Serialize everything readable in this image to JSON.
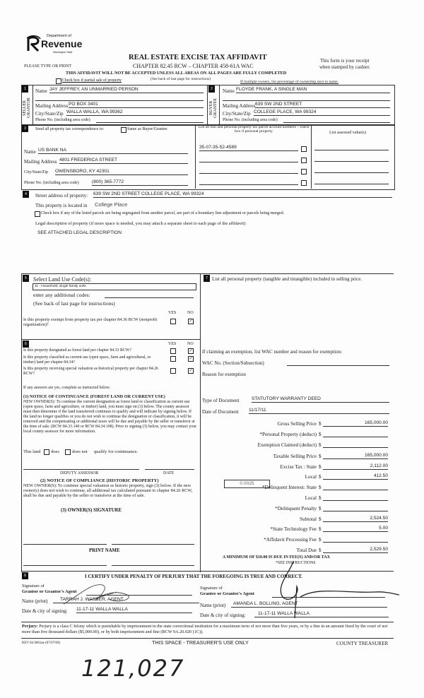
{
  "header": {
    "logo_dept": "Department of",
    "logo_name": "Revenue",
    "logo_state": "Washington State",
    "please_type": "PLEASE TYPE OR PRINT",
    "title": "REAL ESTATE EXCISE TAX AFFIDAVIT",
    "chapter": "CHAPTER 82.45 RCW – CHAPTER 458-61A WAC",
    "warning": "THIS AFFIDAVIT WILL NOT BE ACCEPTED UNLESS ALL AREAS ON ALL PAGES ARE FULLY COMPLETED",
    "see_back": "(See back of last page for instructions)",
    "receipt_line1": "This form is your receipt",
    "receipt_line2": "when stamped by cashier.",
    "partial_sale": "Check box if partial sale of property",
    "multiple_owners": "If multiple owners, list percentage of ownership next to name."
  },
  "seller": {
    "num": "1",
    "side_label": "SELLER GRANTOR",
    "name_label": "Name",
    "name": "JAY JEFFREY, AN UNMARRIED PERSON",
    "mail_label": "Mailing Address",
    "mail": "PO BOX 3401",
    "city_label": "City/State/Zip",
    "city": "WALLA WALLA, WA 99362",
    "phone_label": "Phone No. (including area code)",
    "phone": ""
  },
  "buyer": {
    "num": "2",
    "side_label": "BUYER GRANTEE",
    "name_label": "Name",
    "name": "FLOYDE FRANK, A SINGLE MAN",
    "mail_label": "Mailing Address",
    "mail": "639 SW 2ND STREET",
    "city_label": "City/State/Zip",
    "city": "COLLEGE PLACE, WA 99324",
    "phone_label": "Phone No. (including area code)",
    "phone": ""
  },
  "correspondence": {
    "num": "3",
    "label": "Send all property tax correspondence to:",
    "same_as": "Same as Buyer/Grantee",
    "name_label": "Name",
    "name": "US BANK NA",
    "mail_label": "Mailing Address",
    "mail": "4801 FREDERICA STREET",
    "city_label": "City/State/Zip",
    "city": "OWENSBORO, KY 42301",
    "phone_label": "Phone No. (including area code)",
    "phone": "(800) 365-7772"
  },
  "parcels": {
    "header": "List all real and personal property tax parcel account numbers – check box if personal property",
    "assessed_header": "List assessed value(s)",
    "items": [
      "35-07-35-52-4589",
      "",
      "",
      ""
    ]
  },
  "property": {
    "num": "4",
    "street_label": "Street address of property:",
    "street": "639 SW 2ND STREET COLLEGE PLACE, WA 99324",
    "located_label": "This property is located in",
    "located": "College Place",
    "segregated": "Check box if any of the listed parcels are being segregated from another parcel, are part of a boundary line adjustment or parcels being merged.",
    "legal_label": "Legal description of property (if more space is needed, you may attach a separate sheet to each page of the affidavit)",
    "legal": "SEE ATTACHED LEGAL DESCRIPTION"
  },
  "land_use": {
    "num": "5",
    "label": "Select Land Use Code(s):",
    "code": "11 - Household, single family units",
    "additional": "enter any additional codes:",
    "see_back": "(See back of last page for instructions)",
    "yes": "YES",
    "no": "NO",
    "exempt_q": "Is this property exempt from property tax per chapter 84.36 RCW (nonprofit organization)?",
    "exempt_answer": "NO"
  },
  "section6": {
    "num": "6",
    "yes": "YES",
    "no": "NO",
    "questions": [
      {
        "q": "Is this property designated as forest land per chapter 84.33 RCW?",
        "answer": "NO"
      },
      {
        "q": "Is this property classified as current use (open space, farm and agricultural, or timber) land per chapter 84.34?",
        "answer": "NO"
      },
      {
        "q": "Is this property receiving special valuation as historical property per chapter 84.26 RCW?",
        "answer": "NO"
      }
    ],
    "if_yes": "If any answers are yes, complete as instructed below.",
    "notice1_title": "(1) NOTICE OF CONTINUANCE (FOREST LAND OR CURRENT USE)",
    "notice1_body": "NEW OWNER(S): To continue the current designation as forest land or classification as current use (open space, farm and agriculture, or timber) land, you must sign on (3) below. The county assessor must then determine if the land transferred continues to qualify and will indicate by signing below. If the land no longer qualifies or you do not wish to continue the designation or classification, it will be removed and the compensating or additional taxes will be due and payable by the seller or transferor at the time of sale. (RCW 84.33.140 or RCW 84.34.108). Prior to signing (3) below, you may contact your local county assessor for more information.",
    "this_land": "This land",
    "does": "does",
    "does_not": "does not",
    "qualify": "qualify for continuance.",
    "deputy": "DEPUTY ASSESSOR",
    "date": "DATE",
    "notice2_title": "(2) NOTICE OF COMPLIANCE (HISTORIC PROPERTY)",
    "notice2_body": "NEW OWNER(S): To continue special valuation as historic property, sign (3) below. If the new owner(s) does not wish to continue, all additional tax calculated pursuant to chapter 84.26 RCW, shall be due and payable by the seller or transferor at the time of sale.",
    "owner_sig": "(3) OWNER(S) SIGNATURE",
    "print_name": "PRINT NAME"
  },
  "section7": {
    "num": "7",
    "label": "List all personal property (tangible and intangible) included in selling price.",
    "exemption_label": "If claiming an exemption, list WAC number and reason for exemption:",
    "wac_label": "WAC No. (Section/Subsection)",
    "wac": "",
    "reason_label": "Reason for exemption",
    "reason": "",
    "doc_type_label": "Type of Document",
    "doc_type": "STATUTORY WARRANTY DEED",
    "doc_date_label": "Date of Document",
    "doc_date": "11/17/11",
    "local_rate": "0.0025",
    "amounts": [
      {
        "label": "Gross Selling Price",
        "value": "165,000.00"
      },
      {
        "label": "*Personal Property (deduct)",
        "value": ""
      },
      {
        "label": "Exemption Claimed (deduct)",
        "value": ""
      },
      {
        "label": "Taxable Selling Price",
        "value": "165,000.00"
      },
      {
        "label": "Excise Tax : State",
        "value": "2,112.00"
      },
      {
        "label": "Local",
        "value": "412.50"
      },
      {
        "label": "*Delinquent Interest: State",
        "value": ""
      },
      {
        "label": "Local",
        "value": ""
      },
      {
        "label": "*Delinquent Penalty",
        "value": ""
      },
      {
        "label": "Subtotal",
        "value": "2,524.50"
      },
      {
        "label": "*State Technology Fee",
        "value": "5.00"
      },
      {
        "label": "*Affidavit Processing Fee",
        "value": ""
      },
      {
        "label": "Total Due",
        "value": "2,529.50"
      }
    ],
    "currency": "$",
    "minimum": "A MINIMUM OF $10.00 IS DUE IN FEE(S) AND/OR TAX",
    "see_instructions": "*SEE INSTRUCTIONS"
  },
  "section8": {
    "num": "8",
    "certify": "I CERTIFY UNDER PENALTY OF PERJURY THAT THE FOREGOING IS TRUE AND CORRECT.",
    "sig_of": "Signature of",
    "grantor_agent": "Grantor or Grantor's Agent",
    "grantee_agent": "Grantee or Grantee's Agent",
    "name_print": "Name (print)",
    "grantor_name": "TARRAH J. WASSER, AGENT",
    "grantee_name": "AMANDA L. BOLLING, AGENT",
    "date_city": "Date & city of signing:",
    "grantor_date": "11-17-11 WALLA WALLA",
    "grantee_date": "11-17-11 WALLA WALLA"
  },
  "footer": {
    "perjury_label": "Perjury:",
    "perjury": "Perjury is a class C felony which is punishable by imprisonment in the state correctional institution for a maximum term of not more than five years, or by a fine in an amount fixed by the court of not more than five thousand dollars ($5,000.00), or by both imprisonment and fine (RCW 9A.20.020 (1C)).",
    "rev": "REV 84 0001ae (07/07/09)",
    "treasurer": "THIS SPACE - TREASURER'S USE ONLY",
    "county": "COUNTY TREASURER",
    "handwritten": "121,027"
  }
}
